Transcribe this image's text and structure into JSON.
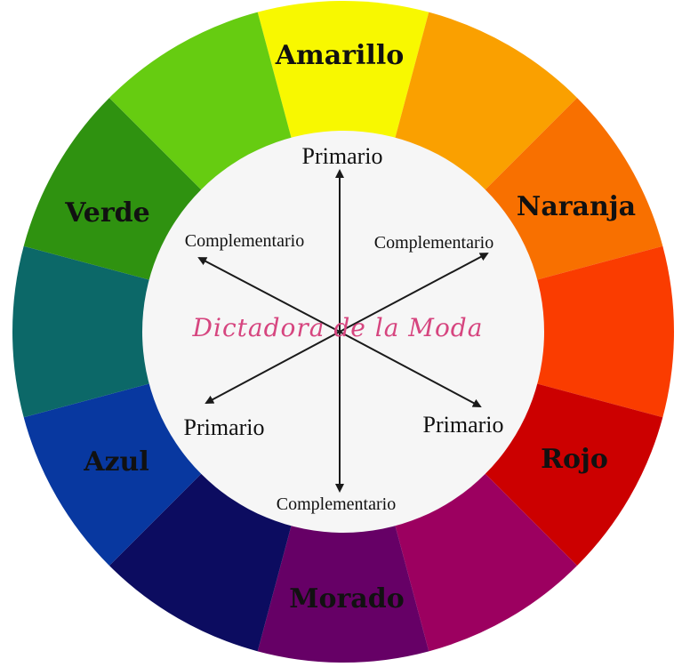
{
  "wheel": {
    "segments": [
      {
        "color": "#f8f800",
        "label": "Amarillo"
      },
      {
        "color": "#faa000",
        "label": ""
      },
      {
        "color": "#f87000",
        "label": "Naranja"
      },
      {
        "color": "#fa3c00",
        "label": ""
      },
      {
        "color": "#cc0000",
        "label": "Rojo"
      },
      {
        "color": "#9c0060",
        "label": ""
      },
      {
        "color": "#660066",
        "label": "Morado"
      },
      {
        "color": "#0c0c60",
        "label": ""
      },
      {
        "color": "#0838a0",
        "label": "Azul"
      },
      {
        "color": "#0c6868",
        "label": ""
      },
      {
        "color": "#2f9210",
        "label": "Verde"
      },
      {
        "color": "#66cc11",
        "label": ""
      }
    ],
    "center_color": "#f6f6f6"
  },
  "labels": {
    "top_primary": "Primario",
    "upper_left_complement": "Complementario",
    "upper_right_complement": "Complementario",
    "lower_left_primary": "Primario",
    "lower_right_primary": "Primario",
    "bottom_complement": "Complementario"
  },
  "watermark": "Dictadora de la Moda"
}
